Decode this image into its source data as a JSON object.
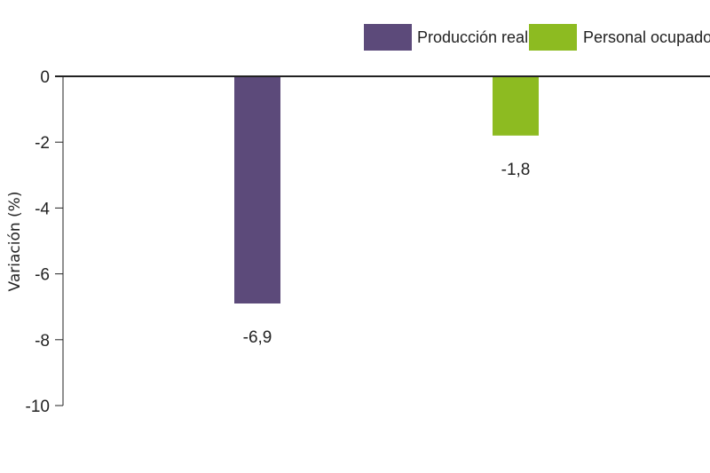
{
  "chart_data": {
    "type": "bar",
    "title": "",
    "xlabel": "",
    "ylabel": "Variación (%)",
    "ylim": [
      -10,
      0
    ],
    "yticks": [
      0,
      -2,
      -4,
      -6,
      -8,
      -10
    ],
    "ytick_labels": [
      "0",
      "-2",
      "-4",
      "-6",
      "-8",
      "-10"
    ],
    "grid": false,
    "legend_position": "top-right",
    "series": [
      {
        "name": "Producción real",
        "value": -6.9,
        "label": "-6,9",
        "color": "#5c4a7a"
      },
      {
        "name": "Personal ocupado",
        "value": -1.8,
        "label": "-1,8",
        "color": "#8dbb21"
      }
    ]
  }
}
